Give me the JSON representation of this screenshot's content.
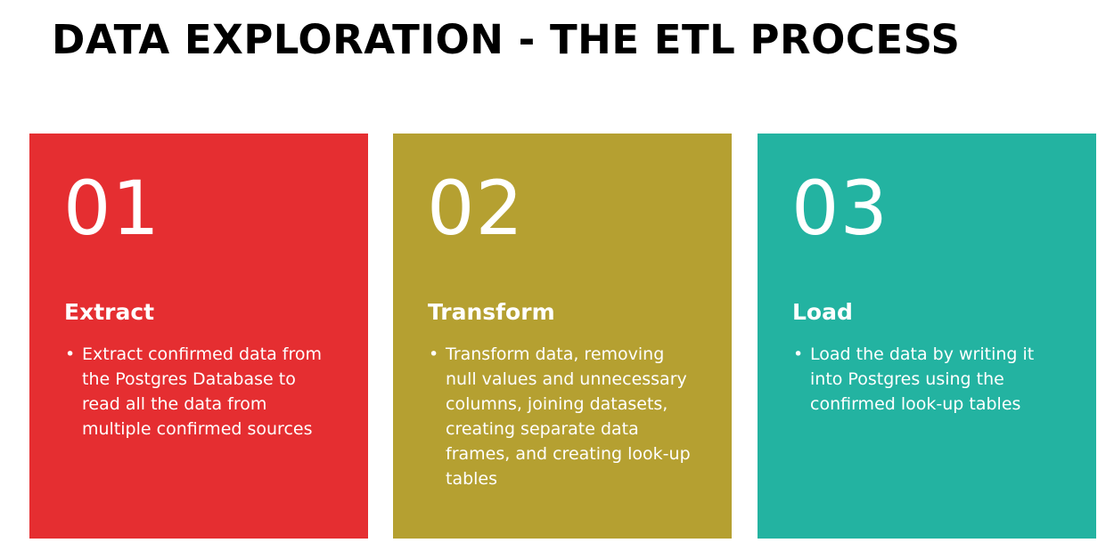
{
  "title": "DATA EXPLORATION - THE ETL PROCESS",
  "colors": {
    "extract": "#e52e31",
    "transform": "#b5a031",
    "load": "#23b3a1"
  },
  "steps": [
    {
      "number": "01",
      "heading": "Extract",
      "bullet": "Extract confirmed data from the Postgres Database to read all the data from multiple confirmed sources"
    },
    {
      "number": "02",
      "heading": "Transform",
      "bullet": "Transform data, removing null values and unnecessary columns, joining datasets, creating separate data frames, and creating look-up tables"
    },
    {
      "number": "03",
      "heading": "Load",
      "bullet": "Load the data by writing it into Postgres using the confirmed look-up tables"
    }
  ]
}
